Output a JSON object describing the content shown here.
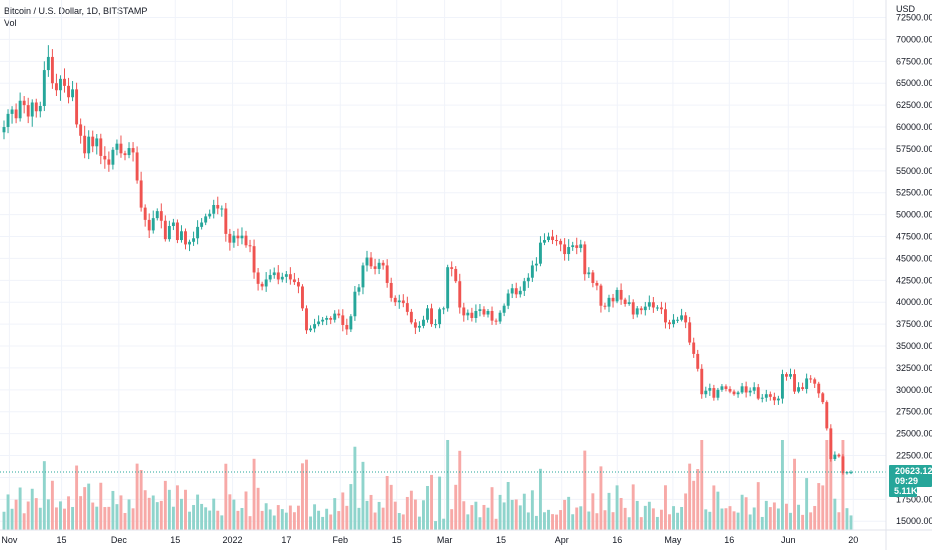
{
  "legend": {
    "symbol": "Bitcoin / U.S. Dollar, 1D, BITSTAMP",
    "volume_label": "Vol"
  },
  "currency_label": "USD",
  "price_tag": {
    "value": "20623.12",
    "countdown": "09:29"
  },
  "volume_tag": "5.11K",
  "colors": {
    "up": "#26a69a",
    "down": "#ef5350",
    "up_vol": "#8fd4cc",
    "down_vol": "#f7a9a7",
    "price_line": "#26a69a",
    "grid": "#f0f3fa"
  },
  "chart_data": {
    "type": "candlestick",
    "title": "Bitcoin / U.S. Dollar, 1D, BITSTAMP",
    "ylabel": "USD",
    "y_ticks": [
      "72500.00",
      "70000.00",
      "67500.00",
      "65000.00",
      "62500.00",
      "60000.00",
      "57500.00",
      "55000.00",
      "52500.00",
      "50000.00",
      "47500.00",
      "45000.00",
      "42500.00",
      "40000.00",
      "37500.00",
      "35000.00",
      "32500.00",
      "30000.00",
      "27500.00",
      "25000.00",
      "22500.00",
      "20000.00",
      "17500.00",
      "15000.00"
    ],
    "ylim": [
      14000,
      74500
    ],
    "x_ticks": [
      "Nov",
      "15",
      "Dec",
      "15",
      "2022",
      "17",
      "Feb",
      "15",
      "Mar",
      "15",
      "Apr",
      "16",
      "May",
      "16",
      "Jun",
      "20"
    ],
    "last_price": 20623.12,
    "closes": [
      60000,
      61500,
      62000,
      61000,
      63000,
      62500,
      61200,
      62800,
      61800,
      62400,
      66500,
      68000,
      65000,
      64200,
      65500,
      64700,
      63400,
      64300,
      60300,
      59000,
      57000,
      58900,
      57800,
      58700,
      56700,
      56300,
      55700,
      57400,
      58100,
      57000,
      56800,
      57600,
      57100,
      53900,
      50800,
      49400,
      48200,
      49600,
      50400,
      49300,
      47200,
      48700,
      49100,
      47100,
      48100,
      46600,
      46900,
      47300,
      48600,
      49100,
      49800,
      50100,
      51100,
      50700,
      50700,
      47800,
      46800,
      47600,
      47300,
      47600,
      46500,
      46400,
      43400,
      42100,
      41800,
      42600,
      43100,
      43400,
      42600,
      42900,
      43200,
      42600,
      42300,
      41800,
      39300,
      36800,
      37000,
      37500,
      37800,
      38000,
      38200,
      38000,
      38700,
      38500,
      37400,
      36900,
      38400,
      41200,
      41700,
      44200,
      45100,
      44100,
      43800,
      44500,
      44200,
      42200,
      40500,
      40000,
      40200,
      39900,
      38900,
      37700,
      37100,
      37300,
      38000,
      39300,
      37500,
      37500,
      39200,
      39300,
      44000,
      43800,
      42400,
      39400,
      38500,
      38800,
      38200,
      39000,
      39200,
      38600,
      39000,
      37900,
      37800,
      38800,
      39600,
      41000,
      41600,
      40900,
      41300,
      42400,
      42800,
      44200,
      44400,
      46800,
      47100,
      47500,
      47100,
      47000,
      46600,
      45500,
      46300,
      46500,
      46200,
      46600,
      43200,
      43400,
      42200,
      41900,
      39600,
      39500,
      40500,
      40100,
      41400,
      40300,
      39800,
      40000,
      38600,
      39300,
      39100,
      39500,
      40000,
      39400,
      39400,
      39200,
      37700,
      37500,
      38000,
      38000,
      38500,
      37700,
      35400,
      34100,
      32400,
      29500,
      29900,
      30200,
      29100,
      30000,
      30400,
      30100,
      29800,
      29500,
      29700,
      30400,
      29700,
      29900,
      30300,
      29000,
      29100,
      29500,
      29200,
      28800,
      29000,
      31800,
      31500,
      31800,
      29800,
      30300,
      30100,
      31300,
      31200,
      30700,
      29600,
      28600,
      25600,
      22100,
      22600,
      22400,
      20500,
      20600,
      20600
    ]
  }
}
